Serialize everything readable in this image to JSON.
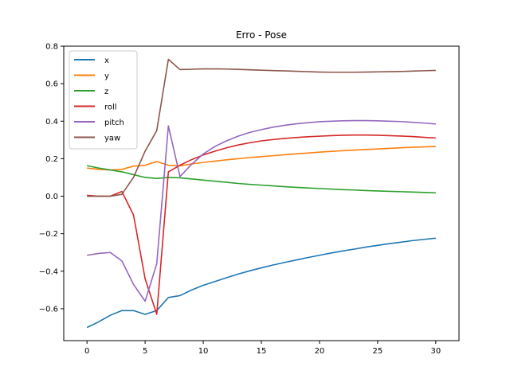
{
  "chart_data": {
    "type": "line",
    "title": "Erro - Pose",
    "xlabel": "",
    "ylabel": "",
    "xlim": [
      -2,
      32
    ],
    "ylim": [
      -0.77,
      0.8
    ],
    "xticks": [
      0,
      5,
      10,
      15,
      20,
      25,
      30
    ],
    "yticks": [
      -0.6,
      -0.4,
      -0.2,
      0.0,
      0.2,
      0.4,
      0.6,
      0.8
    ],
    "ytick_labels": [
      "−0.6",
      "−0.4",
      "−0.2",
      "0.0",
      "0.2",
      "0.4",
      "0.6",
      "0.8"
    ],
    "grid": false,
    "legend_position": "top-left",
    "x": [
      0,
      1,
      2,
      3,
      4,
      5,
      6,
      7,
      8,
      9,
      10,
      11,
      12,
      13,
      14,
      15,
      16,
      17,
      18,
      19,
      20,
      21,
      22,
      23,
      24,
      25,
      26,
      27,
      28,
      29,
      30
    ],
    "series": [
      {
        "name": "x",
        "color": "#1f77b4",
        "values": [
          -0.7,
          -0.67,
          -0.635,
          -0.61,
          -0.61,
          -0.63,
          -0.61,
          -0.54,
          -0.53,
          -0.5,
          -0.475,
          -0.455,
          -0.435,
          -0.415,
          -0.398,
          -0.382,
          -0.367,
          -0.353,
          -0.34,
          -0.327,
          -0.315,
          -0.303,
          -0.292,
          -0.282,
          -0.271,
          -0.262,
          -0.253,
          -0.245,
          -0.237,
          -0.23,
          -0.224
        ]
      },
      {
        "name": "y",
        "color": "#ff7f0e",
        "values": [
          0.15,
          0.143,
          0.14,
          0.143,
          0.16,
          0.165,
          0.185,
          0.165,
          0.162,
          0.172,
          0.18,
          0.187,
          0.194,
          0.2,
          0.206,
          0.211,
          0.216,
          0.221,
          0.226,
          0.23,
          0.235,
          0.239,
          0.243,
          0.246,
          0.249,
          0.252,
          0.255,
          0.258,
          0.261,
          0.263,
          0.265
        ]
      },
      {
        "name": "z",
        "color": "#2ca02c",
        "values": [
          0.163,
          0.15,
          0.14,
          0.13,
          0.115,
          0.1,
          0.095,
          0.1,
          0.098,
          0.092,
          0.086,
          0.08,
          0.074,
          0.068,
          0.063,
          0.059,
          0.055,
          0.051,
          0.047,
          0.044,
          0.041,
          0.038,
          0.035,
          0.033,
          0.03,
          0.028,
          0.026,
          0.024,
          0.022,
          0.02,
          0.018
        ]
      },
      {
        "name": "roll",
        "color": "#d62728",
        "values": [
          0.005,
          0.0,
          0.0,
          0.025,
          -0.1,
          -0.44,
          -0.63,
          0.13,
          0.165,
          0.195,
          0.22,
          0.24,
          0.258,
          0.273,
          0.285,
          0.295,
          0.302,
          0.308,
          0.313,
          0.317,
          0.32,
          0.323,
          0.325,
          0.326,
          0.326,
          0.325,
          0.323,
          0.321,
          0.318,
          0.314,
          0.31
        ]
      },
      {
        "name": "pitch",
        "color": "#9467bd",
        "values": [
          -0.315,
          -0.305,
          -0.3,
          -0.345,
          -0.47,
          -0.56,
          -0.36,
          0.375,
          0.105,
          0.17,
          0.225,
          0.265,
          0.295,
          0.32,
          0.34,
          0.355,
          0.368,
          0.378,
          0.386,
          0.392,
          0.397,
          0.4,
          0.402,
          0.403,
          0.403,
          0.402,
          0.4,
          0.398,
          0.394,
          0.39,
          0.385
        ]
      },
      {
        "name": "yaw",
        "color": "#8c564b",
        "values": [
          0.0,
          0.0,
          0.0,
          0.01,
          0.1,
          0.24,
          0.35,
          0.73,
          0.675,
          0.677,
          0.679,
          0.679,
          0.678,
          0.676,
          0.674,
          0.672,
          0.67,
          0.668,
          0.666,
          0.664,
          0.662,
          0.661,
          0.661,
          0.661,
          0.662,
          0.663,
          0.664,
          0.665,
          0.667,
          0.669,
          0.671
        ]
      }
    ]
  }
}
